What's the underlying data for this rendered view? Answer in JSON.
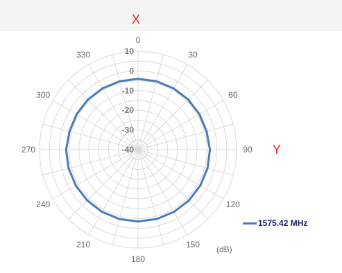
{
  "chart_data": {
    "type": "polar-line",
    "axis_letters": {
      "x": "X",
      "y": "Y"
    },
    "unit_label": "(dB)",
    "angle_unit": "degrees",
    "angle_ticks": [
      0,
      30,
      60,
      90,
      120,
      150,
      180,
      210,
      240,
      270,
      300,
      330
    ],
    "angle_tick_labels": [
      "0",
      "30",
      "60",
      "90",
      "120",
      "150",
      "180",
      "210",
      "240",
      "270",
      "300",
      "330"
    ],
    "radial_range": [
      -40,
      10
    ],
    "radial_ticks": [
      10,
      0,
      -10,
      -20,
      -30,
      -40
    ],
    "radial_tick_labels": [
      "10",
      "0",
      "-10",
      "-20",
      "-30",
      "-40"
    ],
    "angular_gridlines_every_deg": 15,
    "legend_position": "bottom-right",
    "colors": {
      "series": "#4a7bb7",
      "axis_letters": "#e8251c",
      "legend_text": "#1a1f6e",
      "grid": "#d9d9d9",
      "tick_text": "#666666"
    },
    "series": [
      {
        "name": "1575.42 MHz",
        "theta": [
          0,
          15,
          30,
          45,
          60,
          75,
          90,
          105,
          120,
          135,
          150,
          165,
          180,
          195,
          210,
          225,
          240,
          255,
          270,
          285,
          300,
          315,
          330,
          345
        ],
        "r": [
          -4,
          -4,
          -4,
          -4,
          -4,
          -4,
          -3.5,
          -3.5,
          -3.5,
          -3.5,
          -3.5,
          -3.5,
          -3.5,
          -3.5,
          -3.5,
          -3.5,
          -3.5,
          -3.5,
          -3.5,
          -4,
          -4,
          -4,
          -4,
          -4
        ]
      }
    ]
  }
}
